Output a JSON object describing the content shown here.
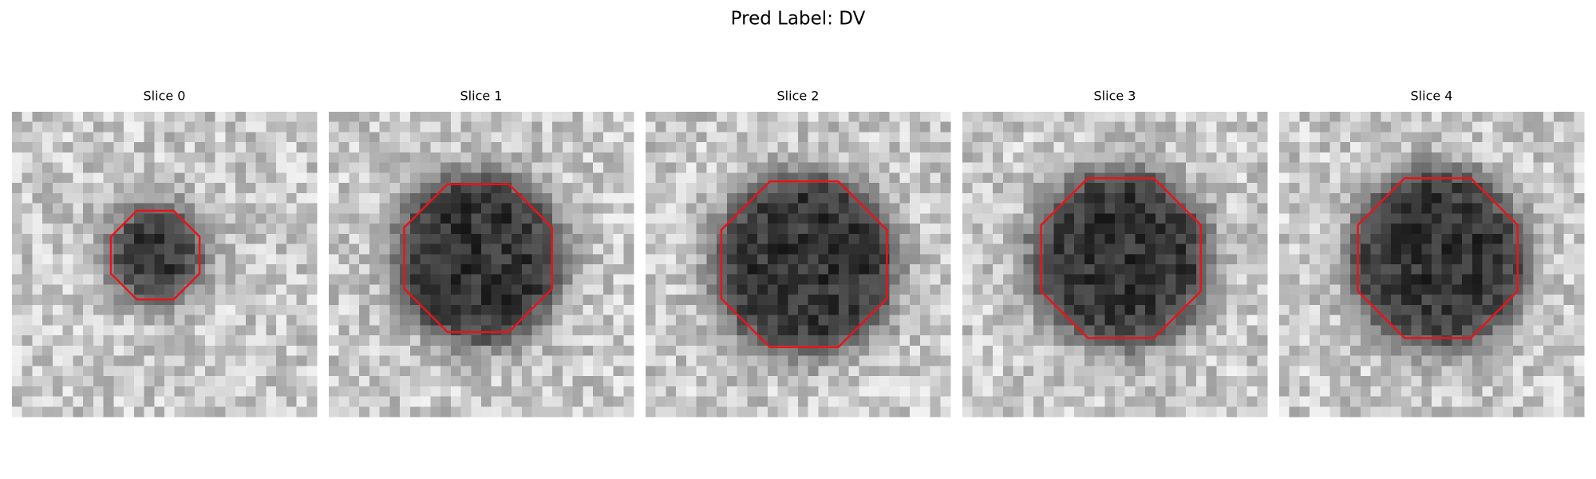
{
  "header": {
    "title": "Pred Label: DV"
  },
  "panels": [
    {
      "title": "Slice 0"
    },
    {
      "title": "Slice 1"
    },
    {
      "title": "Slice 2"
    },
    {
      "title": "Slice 3"
    },
    {
      "title": "Slice 4"
    }
  ]
}
